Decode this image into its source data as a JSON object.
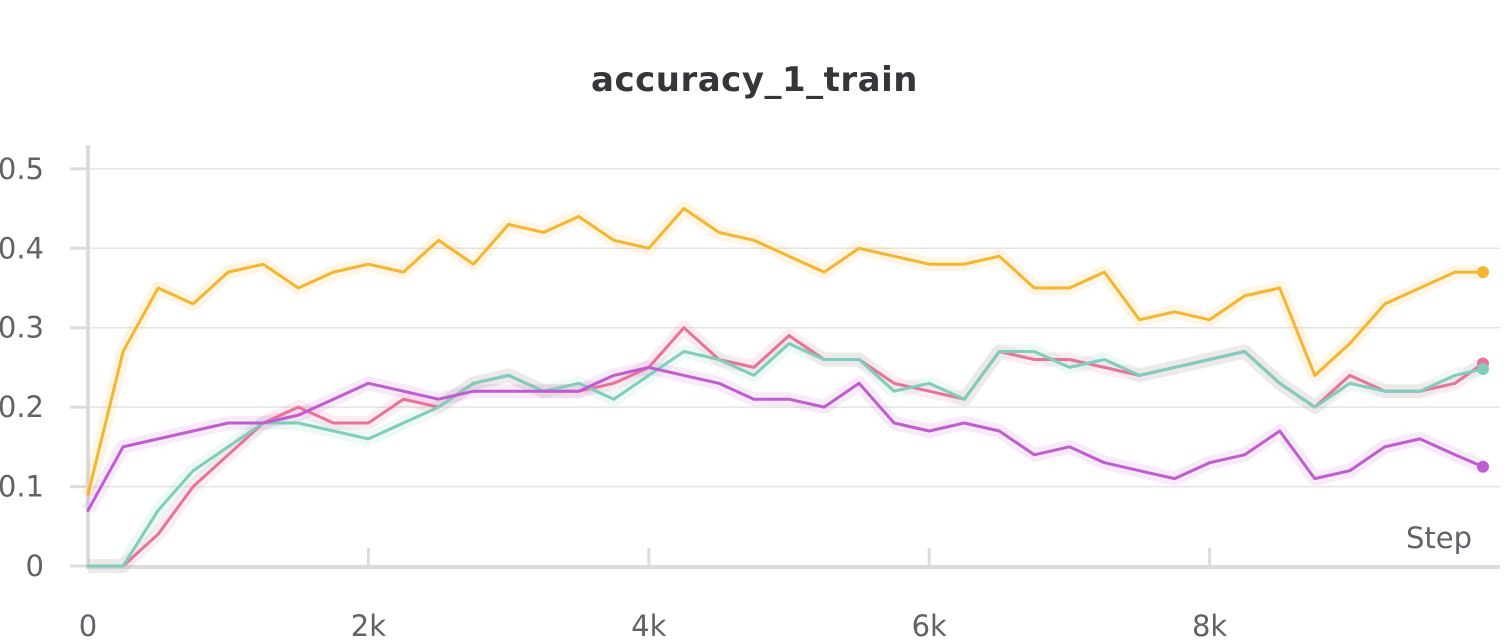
{
  "chart_data": {
    "type": "line",
    "title": "accuracy_1_train",
    "xlabel": "Step",
    "ylabel": "",
    "xlim": [
      0,
      10000
    ],
    "ylim": [
      0,
      0.53
    ],
    "xticks": [
      {
        "value": 0,
        "label": "0"
      },
      {
        "value": 2000,
        "label": "2k"
      },
      {
        "value": 4000,
        "label": "4k"
      },
      {
        "value": 6000,
        "label": "6k"
      },
      {
        "value": 8000,
        "label": "8k"
      }
    ],
    "yticks": [
      {
        "value": 0,
        "label": "0"
      },
      {
        "value": 0.1,
        "label": "0.1"
      },
      {
        "value": 0.2,
        "label": "0.2"
      },
      {
        "value": 0.3,
        "label": "0.3"
      },
      {
        "value": 0.4,
        "label": "0.4"
      },
      {
        "value": 0.5,
        "label": "0.5"
      }
    ],
    "grid": true,
    "legend": "none",
    "x": [
      0,
      250,
      500,
      750,
      1000,
      1250,
      1500,
      1750,
      2000,
      2250,
      2500,
      2750,
      3000,
      3250,
      3500,
      3750,
      4000,
      4250,
      4500,
      4750,
      5000,
      5250,
      5500,
      5750,
      6000,
      6250,
      6500,
      6750,
      7000,
      7250,
      7500,
      7750,
      8000,
      8250,
      8500,
      8750,
      9000,
      9250,
      9500,
      9750,
      9950
    ],
    "series": [
      {
        "color": "#f5b52f",
        "values": [
          0.09,
          0.27,
          0.35,
          0.33,
          0.37,
          0.38,
          0.35,
          0.37,
          0.38,
          0.37,
          0.41,
          0.38,
          0.43,
          0.42,
          0.44,
          0.41,
          0.4,
          0.45,
          0.42,
          0.41,
          0.39,
          0.37,
          0.4,
          0.39,
          0.38,
          0.38,
          0.39,
          0.35,
          0.35,
          0.37,
          0.31,
          0.32,
          0.31,
          0.34,
          0.35,
          0.24,
          0.28,
          0.33,
          0.35,
          0.37,
          0.37
        ]
      },
      {
        "color": "#e8739a",
        "values": [
          0.0,
          0.0,
          0.04,
          0.1,
          0.14,
          0.18,
          0.2,
          0.18,
          0.18,
          0.21,
          0.2,
          0.23,
          0.24,
          0.22,
          0.22,
          0.23,
          0.25,
          0.3,
          0.26,
          0.25,
          0.29,
          0.26,
          0.26,
          0.23,
          0.22,
          0.21,
          0.27,
          0.26,
          0.26,
          0.25,
          0.24,
          0.25,
          0.26,
          0.27,
          0.23,
          0.2,
          0.24,
          0.22,
          0.22,
          0.23,
          0.255
        ]
      },
      {
        "color": "#7fcdbb",
        "values": [
          0.0,
          0.0,
          0.07,
          0.12,
          0.15,
          0.18,
          0.18,
          0.17,
          0.16,
          0.18,
          0.2,
          0.23,
          0.24,
          0.22,
          0.23,
          0.21,
          0.24,
          0.27,
          0.26,
          0.24,
          0.28,
          0.26,
          0.26,
          0.22,
          0.23,
          0.21,
          0.27,
          0.27,
          0.25,
          0.26,
          0.24,
          0.25,
          0.26,
          0.27,
          0.23,
          0.2,
          0.23,
          0.22,
          0.22,
          0.24,
          0.248
        ]
      },
      {
        "color": "#bf5dd0",
        "values": [
          0.07,
          0.15,
          0.16,
          0.17,
          0.18,
          0.18,
          0.19,
          0.21,
          0.23,
          0.22,
          0.21,
          0.22,
          0.22,
          0.22,
          0.22,
          0.24,
          0.25,
          0.24,
          0.23,
          0.21,
          0.21,
          0.2,
          0.23,
          0.18,
          0.17,
          0.18,
          0.17,
          0.14,
          0.15,
          0.13,
          0.12,
          0.11,
          0.13,
          0.14,
          0.17,
          0.11,
          0.12,
          0.15,
          0.16,
          0.14,
          0.125
        ]
      }
    ]
  }
}
